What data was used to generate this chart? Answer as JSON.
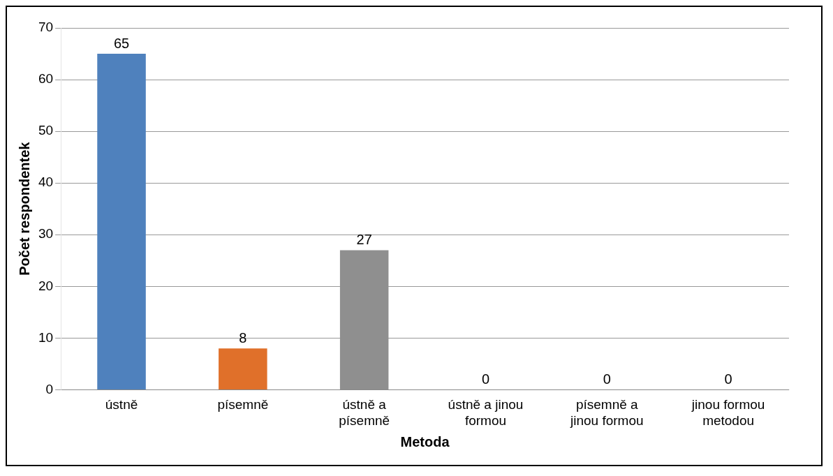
{
  "chart_data": {
    "type": "bar",
    "categories": [
      "ústně",
      "písemně",
      "ústně a písemně",
      "ústně a jinou formou",
      "písemně a jinou formou",
      "jinou formou metodou"
    ],
    "values": [
      65,
      8,
      27,
      0,
      0,
      0
    ],
    "colors": [
      "#4f81bd",
      "#e0702a",
      "#8f8f8f",
      "#b8900a",
      "#2d4f8f",
      "#4e7f2e"
    ],
    "xlabel": "Metoda",
    "ylabel": "Počet respondentek",
    "ylim": [
      0,
      70
    ],
    "yticks": [
      0,
      10,
      20,
      30,
      40,
      50,
      60,
      70
    ],
    "grid": "y",
    "data_labels": true,
    "legend": false
  }
}
